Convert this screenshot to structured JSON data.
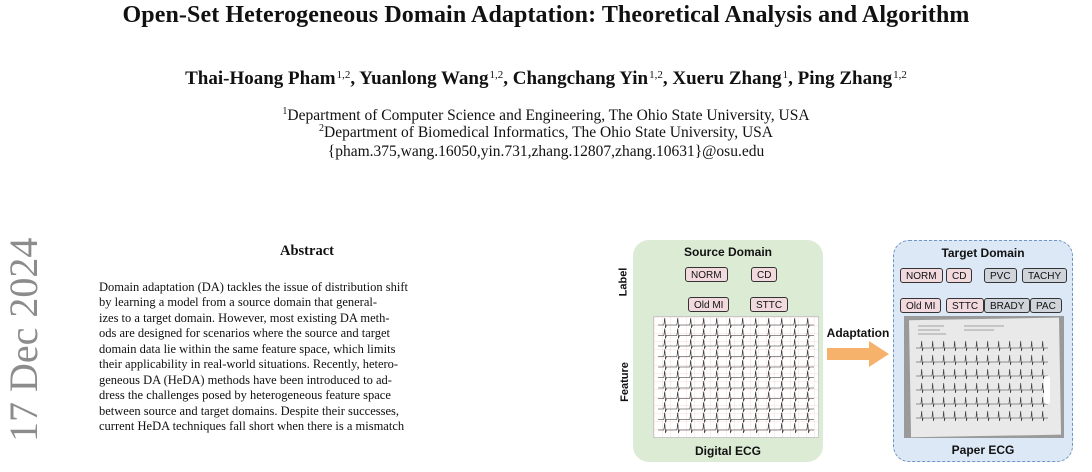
{
  "paper": {
    "title": "Open-Set Heterogeneous Domain Adaptation: Theoretical Analysis and Algorithm",
    "authors": [
      {
        "name": "Thai-Hoang Pham",
        "aff": "1,2",
        "sep": ", "
      },
      {
        "name": "Yuanlong Wang",
        "aff": "1,2",
        "sep": ", "
      },
      {
        "name": "Changchang Yin",
        "aff": "1,2",
        "sep": ", "
      },
      {
        "name": "Xueru Zhang",
        "aff": "1",
        "sep": ", "
      },
      {
        "name": "Ping Zhang",
        "aff": "1,2",
        "sep": ""
      }
    ],
    "affiliations": [
      {
        "num": "1",
        "text": "Department of Computer Science and Engineering, The Ohio State University, USA"
      },
      {
        "num": "2",
        "text": "Department of Biomedical Informatics, The Ohio State University, USA"
      }
    ],
    "emails": "{pham.375,wang.16050,yin.731,zhang.12807,zhang.10631}@osu.edu",
    "arxiv_stamp": "17 Dec 2024",
    "abstract_heading": "Abstract",
    "abstract_lines": [
      "Domain adaptation (DA) tackles the issue of distribution shift",
      "by learning a model from a source domain that general-",
      "izes to a target domain. However, most existing DA meth-",
      "ods are designed for scenarios where the source and target",
      "domain data lie within the same feature space, which limits",
      "their applicability in real-world situations. Recently, hetero-",
      "geneous DA (HeDA) methods have been introduced to ad-",
      "dress the challenges posed by heterogeneous feature space",
      "between source and target domains. Despite their successes,",
      "current HeDA techniques fall short when there is a mismatch"
    ]
  },
  "figure": {
    "source": {
      "title": "Source Domain",
      "labels": [
        "NORM",
        "CD",
        "Old MI",
        "STTC"
      ],
      "footer": "Digital ECG"
    },
    "target": {
      "title": "Target Domain",
      "labels_shared": [
        "NORM",
        "CD",
        "Old MI",
        "STTC"
      ],
      "labels_new": [
        "PVC",
        "TACHY",
        "BRADY",
        "PAC"
      ],
      "footer": "Paper ECG"
    },
    "row_label_top": "Label",
    "row_label_bottom": "Feature",
    "arrow_label": "Adaptation",
    "colors": {
      "source_bg": "#dcebd4",
      "target_bg": "#dce8f5",
      "known_label": "#f1d9dd",
      "unknown_label": "#cfd4da",
      "arrow": "#f6b26b"
    }
  }
}
